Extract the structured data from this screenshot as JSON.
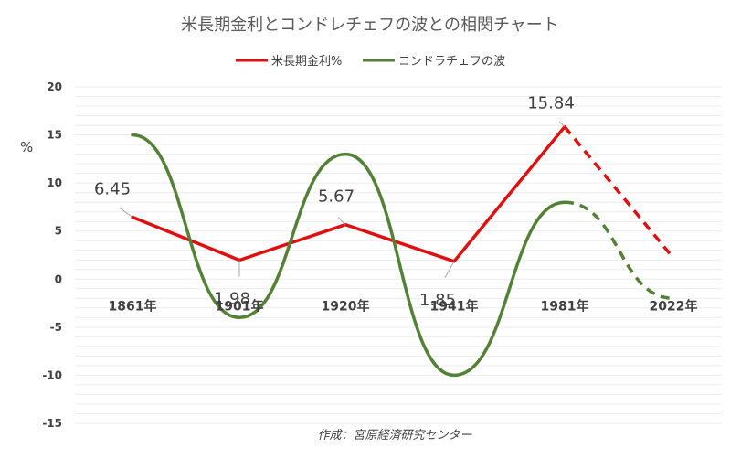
{
  "chart_data": {
    "type": "line",
    "title": "米長期金利とコンドレチェフの波との相関チャート",
    "ylabel": "%",
    "ylim": [
      -15,
      20
    ],
    "yticks": [
      20,
      15,
      10,
      5,
      0,
      -5,
      -10,
      -15
    ],
    "categories": [
      "1861年",
      "1901年",
      "1920年",
      "1941年",
      "1981年",
      "2022年"
    ],
    "grid": true,
    "legend_position": "top",
    "series": [
      {
        "name": "米長期金利%",
        "color": "#e01010",
        "values": [
          6.45,
          1.98,
          5.67,
          1.85,
          15.84,
          2.2
        ],
        "data_labels": [
          "6.45",
          "1.98",
          "5.67",
          "1.85",
          "15.84",
          ""
        ],
        "dashed_from_index": 4
      },
      {
        "name": "コンドラチェフの波",
        "color": "#538135",
        "values": [
          15,
          -4,
          13,
          -10,
          8,
          -2
        ],
        "dashed_from_index": 4
      }
    ],
    "credit": "作成：宮原経済研究センター"
  }
}
